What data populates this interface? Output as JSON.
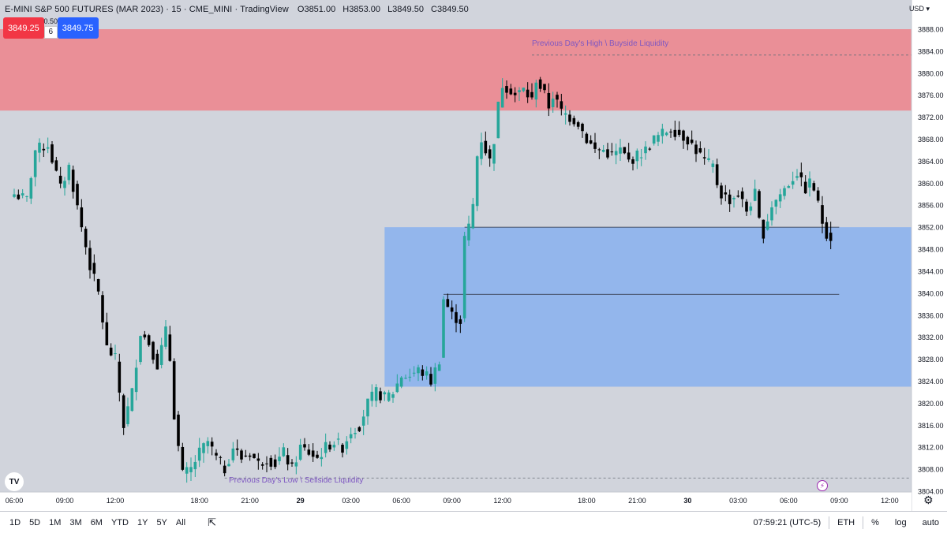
{
  "header": {
    "title": "E-MINI S&P 500 FUTURES (MAR 2023) · 15 · CME_MINI · TradingView",
    "open": "O3851.00",
    "high": "H3853.00",
    "low": "L3849.50",
    "close": "C3849.50"
  },
  "trade": {
    "sell_price": "3849.25",
    "spread": "0.50",
    "quantity": "6",
    "buy_price": "3849.75"
  },
  "currency": "USD",
  "bottom": {
    "timeframes": [
      "1D",
      "5D",
      "1M",
      "3M",
      "6M",
      "YTD",
      "1Y",
      "5Y",
      "All"
    ],
    "time": "07:59:21 (UTC-5)",
    "session": "ETH",
    "percent": "%",
    "log": "log",
    "auto": "auto"
  },
  "colors": {
    "background": "#d1d4dc",
    "up_candle": "#26a69a",
    "down_candle": "#000000",
    "supply_zone": "#ea8f97",
    "demand_zone": "#93b6ec",
    "annotation": "#7e57c2"
  },
  "chart_data": {
    "type": "candlestick",
    "symbol": "E-MINI S&P 500 FUTURES (MAR 2023)",
    "interval": "15",
    "y_axis": {
      "ylim": [
        3804,
        3889
      ],
      "ticks": [
        3804,
        3808,
        3812,
        3816,
        3820,
        3824,
        3828,
        3832,
        3836,
        3840,
        3844,
        3848,
        3852,
        3856,
        3860,
        3864,
        3868,
        3872,
        3876,
        3880,
        3884,
        3888
      ]
    },
    "x_axis": {
      "ticks": [
        {
          "label": "06:00",
          "bar": 0,
          "bold": false
        },
        {
          "label": "09:00",
          "bar": 12,
          "bold": false
        },
        {
          "label": "12:00",
          "bar": 24,
          "bold": false
        },
        {
          "label": "18:00",
          "bar": 44,
          "bold": false
        },
        {
          "label": "21:00",
          "bar": 56,
          "bold": false
        },
        {
          "label": "29",
          "bar": 68,
          "bold": true
        },
        {
          "label": "03:00",
          "bar": 80,
          "bold": false
        },
        {
          "label": "06:00",
          "bar": 92,
          "bold": false
        },
        {
          "label": "09:00",
          "bar": 104,
          "bold": false
        },
        {
          "label": "12:00",
          "bar": 116,
          "bold": false
        },
        {
          "label": "18:00",
          "bar": 136,
          "bold": false
        },
        {
          "label": "21:00",
          "bar": 148,
          "bold": false
        },
        {
          "label": "30",
          "bar": 160,
          "bold": true
        },
        {
          "label": "03:00",
          "bar": 172,
          "bold": false
        },
        {
          "label": "06:00",
          "bar": 184,
          "bold": false
        },
        {
          "label": "09:00",
          "bar": 196,
          "bold": false
        },
        {
          "label": "12:00",
          "bar": 208,
          "bold": false
        }
      ]
    },
    "keypoints": [
      [
        0,
        3858
      ],
      [
        3,
        3857
      ],
      [
        5,
        3866
      ],
      [
        8,
        3867
      ],
      [
        11,
        3859
      ],
      [
        13,
        3863
      ],
      [
        16,
        3852
      ],
      [
        18,
        3845
      ],
      [
        20,
        3840
      ],
      [
        22,
        3830
      ],
      [
        24,
        3828
      ],
      [
        26,
        3816
      ],
      [
        28,
        3822
      ],
      [
        30,
        3833
      ],
      [
        32,
        3831
      ],
      [
        34,
        3827
      ],
      [
        36,
        3833
      ],
      [
        37,
        3828
      ],
      [
        38,
        3818
      ],
      [
        39,
        3812
      ],
      [
        40,
        3807
      ],
      [
        42,
        3808
      ],
      [
        44,
        3811
      ],
      [
        46,
        3813
      ],
      [
        48,
        3810
      ],
      [
        50,
        3808
      ],
      [
        52,
        3812
      ],
      [
        54,
        3810
      ],
      [
        56,
        3811
      ],
      [
        58,
        3809
      ],
      [
        60,
        3810
      ],
      [
        62,
        3809
      ],
      [
        64,
        3811
      ],
      [
        66,
        3808
      ],
      [
        68,
        3812
      ],
      [
        70,
        3811
      ],
      [
        72,
        3810
      ],
      [
        74,
        3812
      ],
      [
        76,
        3813
      ],
      [
        78,
        3812
      ],
      [
        80,
        3815
      ],
      [
        82,
        3816
      ],
      [
        84,
        3820
      ],
      [
        86,
        3822
      ],
      [
        88,
        3821
      ],
      [
        90,
        3822
      ],
      [
        92,
        3825
      ],
      [
        94,
        3825
      ],
      [
        96,
        3826
      ],
      [
        98,
        3825
      ],
      [
        99,
        3824
      ],
      [
        100,
        3826
      ],
      [
        101,
        3828
      ],
      [
        102,
        3839
      ],
      [
        104,
        3836
      ],
      [
        106,
        3835
      ],
      [
        107,
        3850
      ],
      [
        108,
        3852
      ],
      [
        109,
        3856
      ],
      [
        110,
        3865
      ],
      [
        111,
        3868
      ],
      [
        113,
        3864
      ],
      [
        114,
        3868
      ],
      [
        115,
        3874
      ],
      [
        116,
        3878
      ],
      [
        118,
        3877
      ],
      [
        119,
        3876
      ],
      [
        121,
        3877
      ],
      [
        123,
        3875
      ],
      [
        124,
        3879
      ],
      [
        126,
        3876
      ],
      [
        127,
        3874
      ],
      [
        128,
        3876
      ],
      [
        130,
        3873
      ],
      [
        132,
        3872
      ],
      [
        134,
        3871
      ],
      [
        136,
        3868
      ],
      [
        138,
        3866
      ],
      [
        140,
        3866
      ],
      [
        142,
        3865
      ],
      [
        144,
        3866
      ],
      [
        146,
        3864
      ],
      [
        148,
        3865
      ],
      [
        150,
        3866
      ],
      [
        152,
        3868
      ],
      [
        154,
        3869
      ],
      [
        156,
        3870
      ],
      [
        158,
        3869
      ],
      [
        160,
        3868
      ],
      [
        162,
        3866
      ],
      [
        164,
        3864
      ],
      [
        166,
        3863
      ],
      [
        167,
        3860
      ],
      [
        168,
        3858
      ],
      [
        170,
        3857
      ],
      [
        172,
        3858
      ],
      [
        174,
        3855
      ],
      [
        176,
        3858
      ],
      [
        177,
        3853
      ],
      [
        178,
        3851
      ],
      [
        180,
        3856
      ],
      [
        182,
        3858
      ],
      [
        184,
        3860
      ],
      [
        186,
        3862
      ],
      [
        187,
        3860
      ],
      [
        188,
        3859
      ],
      [
        189,
        3860
      ],
      [
        190,
        3859
      ],
      [
        191,
        3856
      ],
      [
        192,
        3853
      ],
      [
        193,
        3851
      ],
      [
        194,
        3849.5
      ]
    ],
    "bar_count": 195,
    "last": {
      "open": 3851.0,
      "high": 3853.0,
      "low": 3849.5,
      "close": 3849.5
    },
    "zones": [
      {
        "name": "supply-zone",
        "y_top": 3888,
        "y_bottom": 3873.2,
        "x_start": 0,
        "x_end": "right-edge",
        "color": "#ea8f97"
      },
      {
        "name": "demand-zone",
        "y_top": 3852,
        "y_bottom": 3823,
        "x_start": 88,
        "x_end": "right-edge",
        "color": "#93b6ec"
      }
    ],
    "lines": [
      {
        "name": "zone-top-line",
        "y": 3852,
        "x_start": 107,
        "x_end": 196,
        "style": "solid"
      },
      {
        "name": "zone-mid-line",
        "y": 3839.8,
        "x_start": 102,
        "x_end": 196,
        "style": "solid"
      },
      {
        "name": "buyside-liquidity-line",
        "y": 3883.3,
        "x_start": 123,
        "x_end": "right-edge",
        "style": "dashed"
      },
      {
        "name": "sellside-liquidity-line",
        "y": 3806.4,
        "x_start": 50,
        "x_end": "right-edge",
        "style": "dashed"
      }
    ],
    "annotations": [
      {
        "name": "buyside-liquidity-label",
        "text": "Previous Day's High \\ Buyside Liquidity",
        "y": 3884.4,
        "bar": 123
      },
      {
        "name": "sellside-liquidity-label",
        "text": "Previous Day's Low \\ Sellside Liquidity",
        "y": 3805.0,
        "bar": 51
      }
    ]
  }
}
